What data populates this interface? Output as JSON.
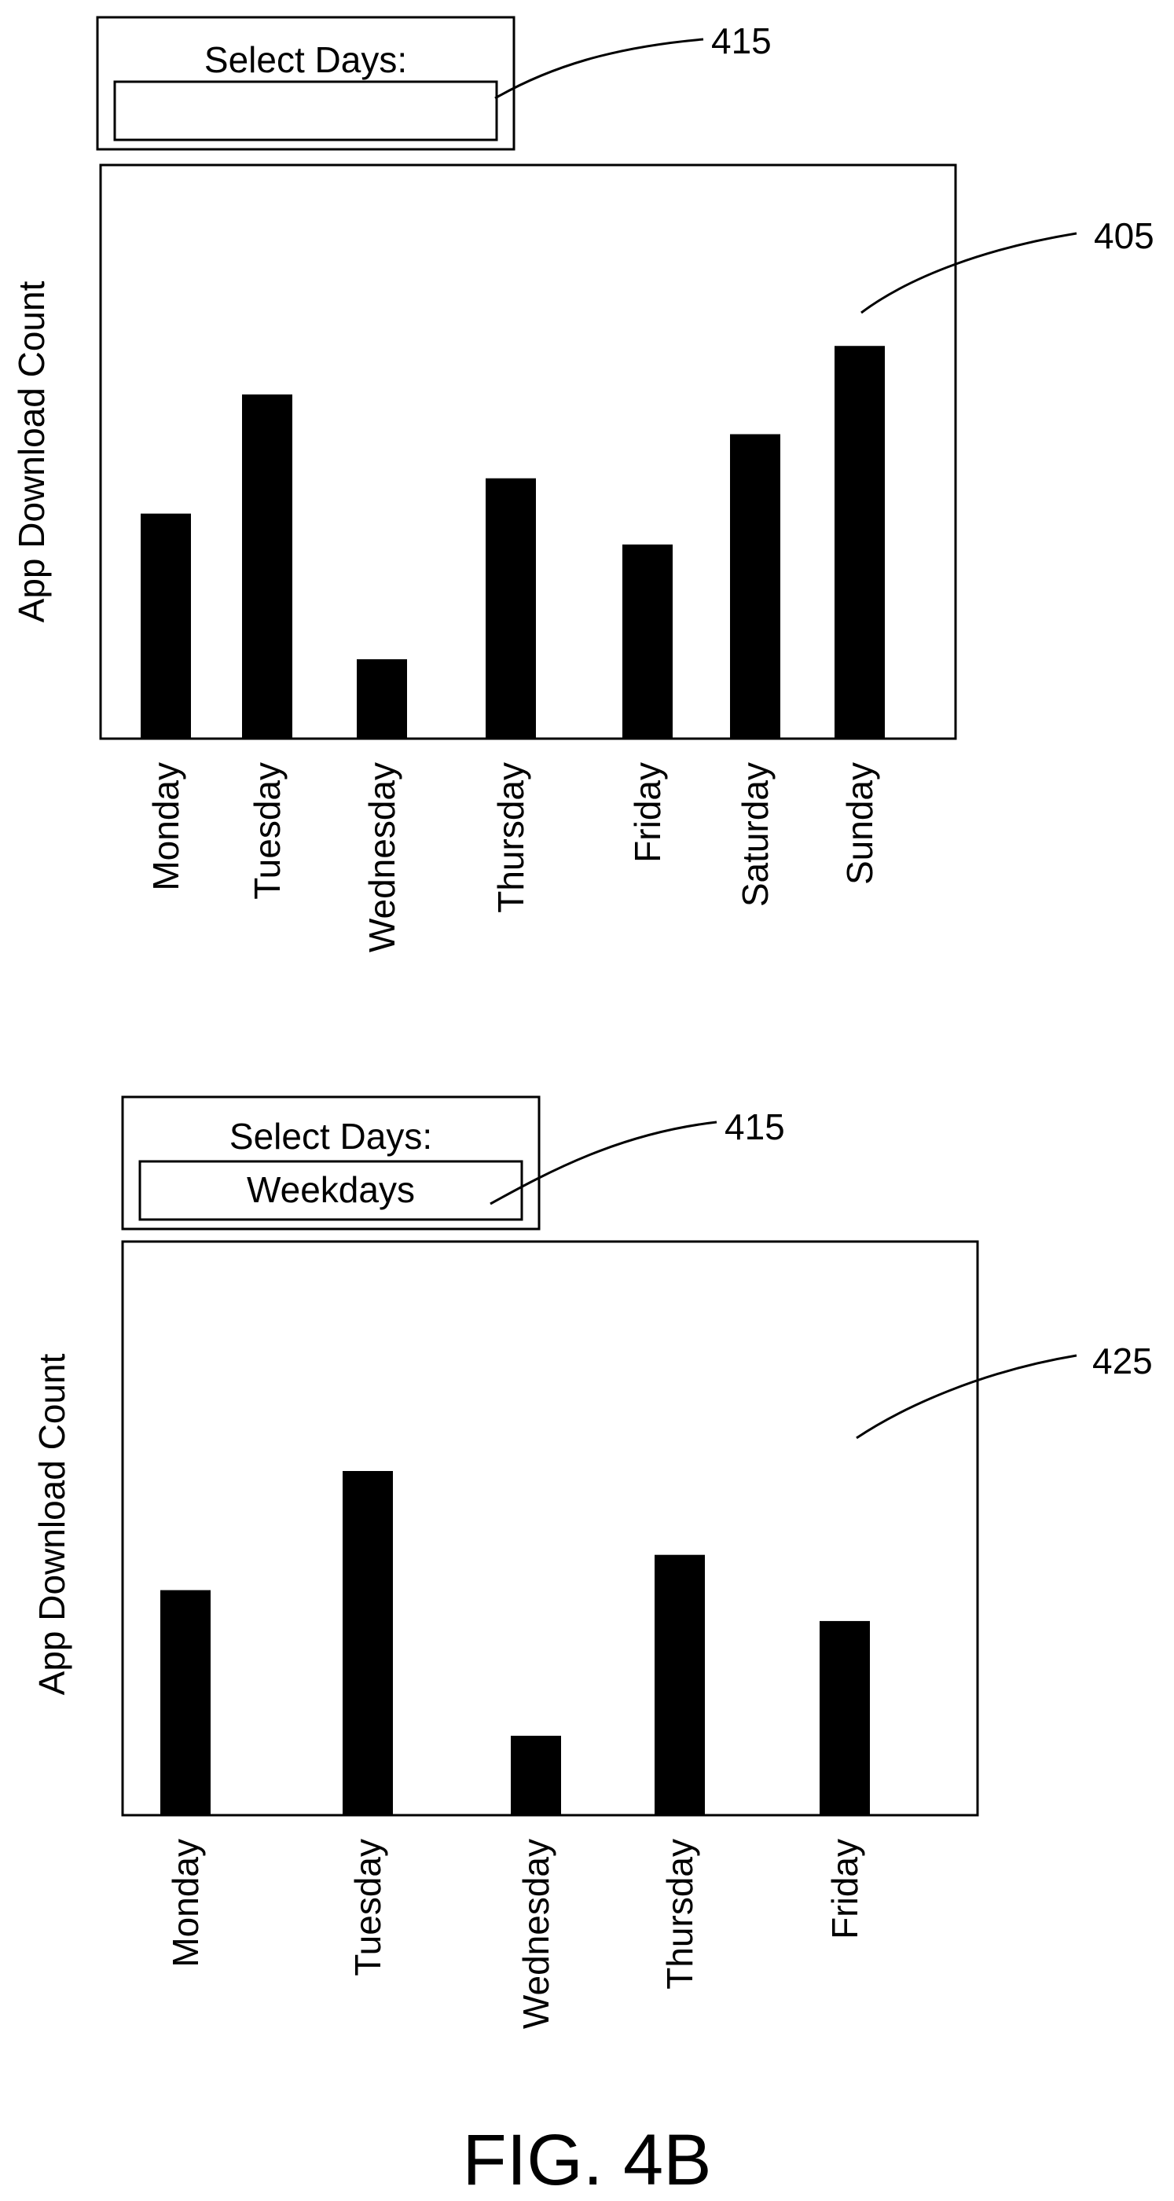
{
  "figure_caption": "FIG. 4B",
  "panels": [
    {
      "selector": {
        "label": "Select Days:",
        "value": "",
        "ref": "415"
      },
      "chart_ref": "405"
    },
    {
      "selector": {
        "label": "Select Days:",
        "value": "Weekdays",
        "ref": "415"
      },
      "chart_ref": "425"
    }
  ],
  "chart_data": [
    {
      "type": "bar",
      "title": "",
      "xlabel": "",
      "ylabel": "App Download Count",
      "categories": [
        "Monday",
        "Tuesday",
        "Wednesday",
        "Thursday",
        "Friday",
        "Saturday",
        "Sunday"
      ],
      "values": [
        51,
        78,
        18,
        59,
        44,
        69,
        89
      ],
      "ylim": [
        0,
        130
      ],
      "grid": false,
      "bar_color": "#000000"
    },
    {
      "type": "bar",
      "title": "",
      "xlabel": "",
      "ylabel": "App Download Count",
      "categories": [
        "Monday",
        "Tuesday",
        "Wednesday",
        "Thursday",
        "Friday"
      ],
      "values": [
        51,
        78,
        18,
        59,
        44
      ],
      "ylim": [
        0,
        130
      ],
      "grid": false,
      "bar_color": "#000000"
    }
  ]
}
